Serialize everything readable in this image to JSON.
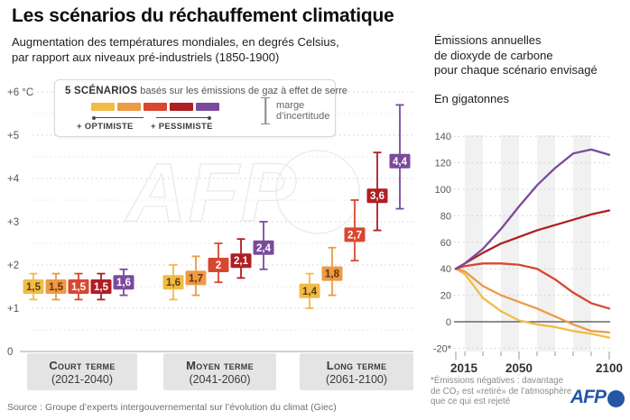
{
  "header": {
    "title": "Les scénarios du réchauffement climatique",
    "subtitle_line1": "Augmentation des températures mondiales, en degrés Celsius,",
    "subtitle_line2": "par rapport aux niveaux pré-industriels (1850-1900)"
  },
  "legend": {
    "count_label": "5 SCÉNARIOS",
    "title_rest": " basés sur les émissions de gaz à effet de serre",
    "optimiste_label": "+ OPTIMISTE",
    "pessimiste_label": "+ PESSIMISTE",
    "uncertainty_line1": "marge",
    "uncertainty_line2": "d’incertitude"
  },
  "scenarios": [
    {
      "name": "scénario 1",
      "color": "#F1BC45",
      "text_color": "#5E3A12"
    },
    {
      "name": "scénario 2",
      "color": "#EB9B44",
      "text_color": "#6B2F10"
    },
    {
      "name": "scénario 3",
      "color": "#D8472F",
      "text_color": "#FFFFFF"
    },
    {
      "name": "scénario 4",
      "color": "#AE1E24",
      "text_color": "#FFFFFF"
    },
    {
      "name": "scénario 5",
      "color": "#7A4B9D",
      "text_color": "#FFFFFF"
    }
  ],
  "watermark": "AFP",
  "periods": [
    {
      "label": "Court terme",
      "years": "(2021-2040)"
    },
    {
      "label": "Moyen terme",
      "years": "(2041-2060)"
    },
    {
      "label": "Long terme",
      "years": "(2061-2100)"
    }
  ],
  "source": "Source : Groupe d’experts intergouvernemental sur l’évolution du climat (Giec)",
  "right_panel": {
    "title_line1": "Émissions annuelles",
    "title_line2": "de dioxyde de carbone",
    "title_line3": "pour chaque scénario envisagé",
    "unit": "En gigatonnes"
  },
  "footnote": {
    "line1": "*Émissions négatives : davantage",
    "line2": "de CO₂ est «retiré» de l’atmosphère",
    "line3": "que ce qui est rejeté"
  },
  "logo": {
    "text": "AFP",
    "color": "#2456A5"
  },
  "chart_data": [
    {
      "type": "scatter",
      "title": "Augmentation des températures mondiales, en degrés Celsius, par rapport aux niveaux pré-industriels (1850-1900)",
      "ylabel": "°C",
      "ylim": [
        0,
        6.3
      ],
      "grid": "dotted",
      "y_ticks": [
        {
          "value": 6,
          "label": "+6 °C"
        },
        {
          "value": 5,
          "label": "+5"
        },
        {
          "value": 4,
          "label": "+4"
        },
        {
          "value": 3,
          "label": "+3"
        },
        {
          "value": 2,
          "label": "+2"
        },
        {
          "value": 1,
          "label": "+1"
        },
        {
          "value": 0,
          "label": "0"
        }
      ],
      "groups": [
        {
          "label": "Court terme",
          "years": "(2021-2040)",
          "values": [
            {
              "display": "1,5",
              "value": 1.5,
              "low": 1.2,
              "high": 1.8
            },
            {
              "display": "1,5",
              "value": 1.5,
              "low": 1.2,
              "high": 1.8
            },
            {
              "display": "1,5",
              "value": 1.5,
              "low": 1.2,
              "high": 1.8
            },
            {
              "display": "1,5",
              "value": 1.5,
              "low": 1.2,
              "high": 1.8
            },
            {
              "display": "1,6",
              "value": 1.6,
              "low": 1.3,
              "high": 1.9
            }
          ]
        },
        {
          "label": "Moyen terme",
          "years": "(2041-2060)",
          "values": [
            {
              "display": "1,6",
              "value": 1.6,
              "low": 1.2,
              "high": 2.0
            },
            {
              "display": "1,7",
              "value": 1.7,
              "low": 1.3,
              "high": 2.2
            },
            {
              "display": "2",
              "value": 2.0,
              "low": 1.6,
              "high": 2.5
            },
            {
              "display": "2,1",
              "value": 2.1,
              "low": 1.7,
              "high": 2.6
            },
            {
              "display": "2,4",
              "value": 2.4,
              "low": 1.9,
              "high": 3.0
            }
          ]
        },
        {
          "label": "Long terme",
          "years": "(2061-2100)",
          "values": [
            {
              "display": "1,4",
              "value": 1.4,
              "low": 1.0,
              "high": 1.8
            },
            {
              "display": "1,8",
              "value": 1.8,
              "low": 1.3,
              "high": 2.4
            },
            {
              "display": "2,7",
              "value": 2.7,
              "low": 2.1,
              "high": 3.5
            },
            {
              "display": "3,6",
              "value": 3.6,
              "low": 2.8,
              "high": 4.6
            },
            {
              "display": "4,4",
              "value": 4.4,
              "low": 3.3,
              "high": 5.7
            }
          ]
        }
      ]
    },
    {
      "type": "line",
      "title": "Émissions annuelles de dioxyde de carbone pour chaque scénario envisagé",
      "ylabel": "En gigatonnes",
      "ylim": [
        -25,
        145
      ],
      "grid": "dotted",
      "x": [
        2015,
        2020,
        2030,
        2040,
        2050,
        2060,
        2070,
        2080,
        2090,
        2100
      ],
      "x_ticks": [
        2015,
        2020,
        2030,
        2040,
        2050,
        2060,
        2070,
        2080,
        2090,
        2100
      ],
      "x_labels": [
        {
          "value": 2015,
          "label": "2015"
        },
        {
          "value": 2050,
          "label": "2050"
        },
        {
          "value": 2100,
          "label": "2100"
        }
      ],
      "y_ticks": [
        {
          "value": 140,
          "label": "140"
        },
        {
          "value": 120,
          "label": "120"
        },
        {
          "value": 100,
          "label": "100"
        },
        {
          "value": 80,
          "label": "80"
        },
        {
          "value": 60,
          "label": "60"
        },
        {
          "value": 40,
          "label": "40"
        },
        {
          "value": 20,
          "label": "20"
        },
        {
          "value": 0,
          "label": "0"
        },
        {
          "value": -20,
          "label": "-20*"
        }
      ],
      "shaded_decades": [
        [
          2020,
          2030
        ],
        [
          2040,
          2050
        ],
        [
          2060,
          2070
        ],
        [
          2080,
          2090
        ]
      ],
      "series": [
        {
          "name": "scénario 1",
          "values": [
            40,
            36,
            18,
            8,
            1,
            -2,
            -4,
            -7,
            -9,
            -12
          ]
        },
        {
          "name": "scénario 2",
          "values": [
            40,
            38,
            27,
            20,
            15,
            10,
            4,
            -2,
            -7,
            -8
          ]
        },
        {
          "name": "scénario 3",
          "values": [
            40,
            42,
            44,
            44,
            43,
            40,
            32,
            22,
            14,
            10
          ]
        },
        {
          "name": "scénario 4",
          "values": [
            40,
            44,
            52,
            59,
            64,
            69,
            73,
            77,
            81,
            84
          ]
        },
        {
          "name": "scénario 5",
          "values": [
            40,
            44,
            55,
            70,
            87,
            103,
            116,
            127,
            130,
            126
          ]
        }
      ]
    }
  ]
}
